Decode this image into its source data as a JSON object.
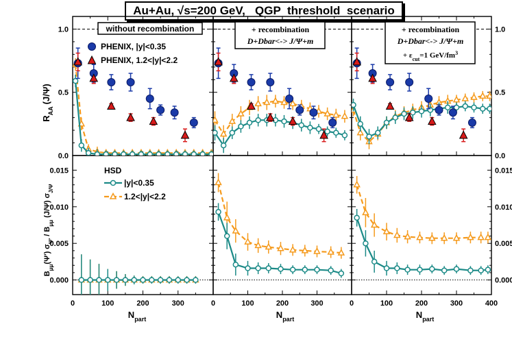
{
  "figure_title": "Au+Au, √s=200 GeV,   QGP  threshold  scenario",
  "top_ylabel": "Rₐₐ (J/Ψ)",
  "top_ylabel_main": "R",
  "top_ylabel_sub": "AA",
  "top_ylabel_tail": "(J/Ψ)",
  "bottom_ylabel_full": "Bμμ(Ψ') σΨ' / Bμμ (J/Ψ) σJ/Ψ",
  "bottom_ylabel_parts": [
    "B",
    "μμ",
    "(Ψ') σ",
    "Ψ'",
    " / B",
    "μμ",
    " (J/Ψ) σ",
    "J/Ψ"
  ],
  "xlabel_main": "N",
  "xlabel_sub": "part",
  "panel_labels": {
    "left": "without recombination",
    "middle_line1": "+ recombination",
    "middle_line2": "D+Dbar<-> J/Ψ+m",
    "right_line1": "+ recombination",
    "right_line2": "D+Dbar<-> J/Ψ+m",
    "right_line3_main": "+ ε",
    "right_line3_sub": "cut",
    "right_line3_tail": "=1 GeV/fm",
    "right_line3_sup": "3"
  },
  "legend_top": [
    "PHENIX, |y|<0.35",
    "PHENIX, 1.2<|y|<2.2"
  ],
  "legend_bottom": {
    "title": "HSD",
    "entries": [
      "|y|<0.35",
      "1.2<|y|<2.2"
    ]
  },
  "ticks": {
    "top_y": [
      "0.0",
      "0.5",
      "1.0"
    ],
    "bottom_y": [
      "0.000",
      "0.005",
      "0.010",
      "0.015"
    ],
    "x_left": [
      "0",
      "100",
      "200",
      "300"
    ],
    "x_middle": [
      "0",
      "100",
      "200",
      "300"
    ],
    "x_right": [
      "0",
      "100",
      "200",
      "300",
      "400"
    ]
  },
  "colors": {
    "teal": "#1b8a87",
    "orange": "#f59a1c",
    "blue": "#1a3aa8",
    "red": "#d81a1a",
    "black": "#000000"
  },
  "chart_data": {
    "type": "scatter",
    "xlim": [
      0,
      400
    ],
    "top_ylim": [
      0,
      1.1
    ],
    "bottom_ylim": [
      -0.002,
      0.017
    ],
    "reference_line_top": 1.0,
    "reference_line_bottom": 0.0,
    "phenix_mid": {
      "x": [
        15,
        60,
        110,
        165,
        220,
        250,
        290,
        345
      ],
      "y": [
        0.73,
        0.65,
        0.58,
        0.58,
        0.45,
        0.36,
        0.34,
        0.26
      ],
      "err": [
        0.12,
        0.07,
        0.06,
        0.07,
        0.08,
        0.04,
        0.05,
        0.04
      ]
    },
    "phenix_fwd": {
      "x": [
        15,
        60,
        110,
        165,
        230,
        320
      ],
      "y": [
        0.74,
        0.61,
        0.39,
        0.3,
        0.27,
        0.16
      ],
      "err": [
        0.07,
        0.04,
        0.02,
        0.03,
        0.03,
        0.05
      ]
    },
    "panels": [
      {
        "name": "without recombination",
        "top_teal": {
          "x": [
            8,
            25,
            45,
            70,
            95,
            120,
            145,
            170,
            195,
            220,
            245,
            270,
            295,
            320,
            345,
            370,
            395
          ],
          "y": [
            0.59,
            0.08,
            0.02,
            0.01,
            0.01,
            0.01,
            0.01,
            0.01,
            0.01,
            0.01,
            0.01,
            0.01,
            0.01,
            0.01,
            0.01,
            0.01,
            0.01
          ],
          "err": [
            0.05,
            0.05,
            0.04,
            0.04,
            0.03,
            0.03,
            0.03,
            0.03,
            0.03,
            0.03,
            0.03,
            0.03,
            0.03,
            0.03,
            0.03,
            0.03,
            0.03
          ]
        },
        "top_orange": {
          "x": [
            8,
            25,
            45,
            70,
            95,
            120,
            145,
            170,
            195,
            220,
            245,
            270,
            295,
            320,
            345,
            370,
            395
          ],
          "y": [
            0.72,
            0.25,
            0.05,
            0.03,
            0.02,
            0.02,
            0.02,
            0.02,
            0.02,
            0.02,
            0.02,
            0.02,
            0.02,
            0.02,
            0.02,
            0.02,
            0.02
          ],
          "err": [
            0.05,
            0.05,
            0.04,
            0.04,
            0.03,
            0.03,
            0.03,
            0.03,
            0.03,
            0.03,
            0.03,
            0.03,
            0.03,
            0.03,
            0.03,
            0.03,
            0.03
          ]
        },
        "bottom_teal": {
          "x": [
            25,
            50,
            75,
            100,
            125,
            150,
            175,
            200,
            225,
            250,
            275,
            300,
            325,
            350
          ],
          "y": [
            0,
            0,
            0,
            0,
            0,
            0,
            0,
            0,
            0,
            0,
            0,
            0,
            0,
            0
          ],
          "err": [
            0.0035,
            0.0028,
            0.0022,
            0.0015,
            0.0012,
            0.0008,
            0.0006,
            0.0005,
            0.0005,
            0.0005,
            0.0005,
            0.0005,
            0.0005,
            0.0005
          ]
        },
        "bottom_orange": {
          "x": [
            25,
            50,
            75,
            100,
            125,
            150,
            175,
            200,
            225,
            250,
            275,
            300,
            325,
            350
          ],
          "y": [
            0,
            0,
            0,
            0,
            0,
            0,
            0,
            0,
            0,
            0,
            0,
            0,
            0,
            0
          ],
          "err": [
            0.0035,
            0.0028,
            0.0022,
            0.0015,
            0.0012,
            0.0008,
            0.0006,
            0.0005,
            0.0005,
            0.0005,
            0.0005,
            0.0005,
            0.0005,
            0.0005
          ]
        }
      },
      {
        "name": "+ recombination",
        "top_teal": {
          "x": [
            5,
            30,
            55,
            80,
            105,
            130,
            155,
            180,
            205,
            230,
            255,
            280,
            305,
            330,
            355,
            380
          ],
          "y": [
            0.18,
            0.08,
            0.18,
            0.23,
            0.26,
            0.28,
            0.28,
            0.28,
            0.27,
            0.26,
            0.24,
            0.22,
            0.21,
            0.19,
            0.18,
            0.16
          ],
          "err": [
            0.06,
            0.06,
            0.05,
            0.05,
            0.05,
            0.05,
            0.05,
            0.05,
            0.05,
            0.05,
            0.05,
            0.05,
            0.04,
            0.04,
            0.04,
            0.04
          ]
        },
        "top_orange": {
          "x": [
            5,
            30,
            55,
            80,
            105,
            130,
            155,
            180,
            205,
            230,
            255,
            280,
            305,
            330,
            355,
            380
          ],
          "y": [
            0.28,
            0.17,
            0.27,
            0.33,
            0.38,
            0.41,
            0.42,
            0.43,
            0.42,
            0.41,
            0.39,
            0.37,
            0.35,
            0.33,
            0.32,
            0.31
          ],
          "err": [
            0.07,
            0.07,
            0.06,
            0.06,
            0.06,
            0.06,
            0.06,
            0.05,
            0.05,
            0.05,
            0.05,
            0.05,
            0.05,
            0.05,
            0.05,
            0.05
          ]
        },
        "bottom_teal": {
          "x": [
            15,
            40,
            65,
            100,
            130,
            160,
            195,
            230,
            265,
            300,
            340,
            370
          ],
          "y": [
            0.0093,
            0.006,
            0.0021,
            0.0016,
            0.0016,
            0.0016,
            0.0015,
            0.0014,
            0.0014,
            0.0014,
            0.0013,
            0.0009
          ],
          "err": [
            0.0012,
            0.0018,
            0.0015,
            0.001,
            0.0008,
            0.0007,
            0.0007,
            0.0006,
            0.0006,
            0.0006,
            0.0006,
            0.0006
          ]
        },
        "bottom_orange": {
          "x": [
            15,
            40,
            65,
            100,
            130,
            160,
            195,
            230,
            265,
            300,
            340,
            370
          ],
          "y": [
            0.0133,
            0.0085,
            0.0067,
            0.0052,
            0.0047,
            0.0045,
            0.0043,
            0.0041,
            0.004,
            0.0039,
            0.0038,
            0.0037
          ],
          "err": [
            0.0013,
            0.0022,
            0.0016,
            0.0012,
            0.001,
            0.0009,
            0.0009,
            0.0008,
            0.0008,
            0.0008,
            0.0008,
            0.0008
          ]
        }
      },
      {
        "name": "+ recombination, eps_cut = 1 GeV/fm^3",
        "top_teal": {
          "x": [
            5,
            25,
            50,
            75,
            100,
            125,
            150,
            175,
            200,
            225,
            250,
            275,
            300,
            325,
            350,
            375,
            395
          ],
          "y": [
            0.4,
            0.25,
            0.15,
            0.18,
            0.26,
            0.3,
            0.33,
            0.34,
            0.35,
            0.36,
            0.37,
            0.38,
            0.38,
            0.39,
            0.38,
            0.37,
            0.37
          ],
          "err": [
            0.05,
            0.06,
            0.06,
            0.05,
            0.05,
            0.05,
            0.05,
            0.05,
            0.05,
            0.05,
            0.05,
            0.05,
            0.04,
            0.04,
            0.04,
            0.04,
            0.04
          ]
        },
        "top_orange": {
          "x": [
            5,
            25,
            50,
            75,
            100,
            125,
            150,
            175,
            200,
            225,
            250,
            275,
            300,
            325,
            350,
            375,
            395
          ],
          "y": [
            0.36,
            0.18,
            0.11,
            0.17,
            0.26,
            0.31,
            0.34,
            0.36,
            0.38,
            0.4,
            0.42,
            0.43,
            0.44,
            0.45,
            0.46,
            0.47,
            0.47
          ],
          "err": [
            0.05,
            0.06,
            0.06,
            0.05,
            0.05,
            0.05,
            0.05,
            0.05,
            0.05,
            0.05,
            0.05,
            0.05,
            0.04,
            0.04,
            0.04,
            0.04,
            0.04
          ]
        },
        "bottom_teal": {
          "x": [
            15,
            40,
            65,
            100,
            130,
            160,
            195,
            230,
            265,
            300,
            340,
            370,
            390
          ],
          "y": [
            0.0085,
            0.005,
            0.0025,
            0.0016,
            0.0016,
            0.0014,
            0.0014,
            0.0015,
            0.0013,
            0.0015,
            0.0013,
            0.0013,
            0.0014
          ],
          "err": [
            0.0012,
            0.0018,
            0.0015,
            0.001,
            0.0008,
            0.0007,
            0.0007,
            0.0006,
            0.0006,
            0.0006,
            0.0006,
            0.0006,
            0.0006
          ]
        },
        "bottom_orange": {
          "x": [
            15,
            40,
            65,
            100,
            130,
            160,
            195,
            230,
            265,
            300,
            340,
            370,
            390
          ],
          "y": [
            0.013,
            0.0092,
            0.0075,
            0.0066,
            0.0061,
            0.0059,
            0.0058,
            0.0057,
            0.0057,
            0.0057,
            0.0058,
            0.0058,
            0.0058
          ],
          "err": [
            0.0012,
            0.002,
            0.0016,
            0.0012,
            0.001,
            0.0009,
            0.0008,
            0.0008,
            0.0008,
            0.0008,
            0.0008,
            0.0008,
            0.0008
          ]
        }
      }
    ]
  }
}
